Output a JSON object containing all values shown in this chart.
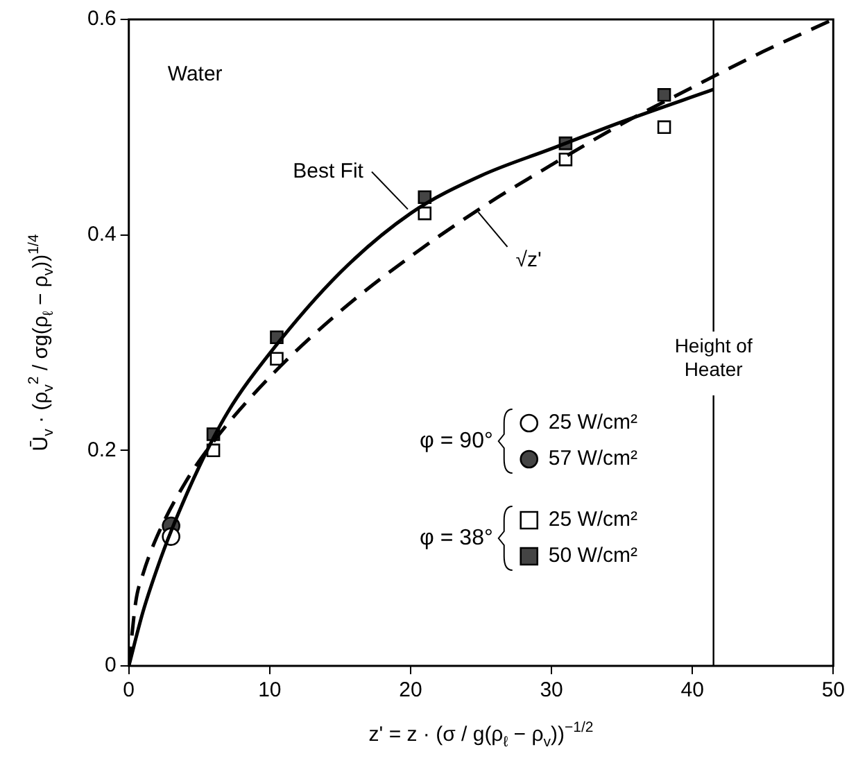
{
  "chart_data": {
    "type": "scatter",
    "xlabel": "z' = z · (σ / g(ρ$_{ℓ}$ − ρ$_{v}$))$^{−1/2}$",
    "ylabel": "Ū$_{v}$ · (ρ$_{v}$$^{2}$ / σg(ρ$_{ℓ}$ − ρ$_{v}$))$^{1/4}$",
    "annotations": [
      "Water",
      "φ = 90°",
      "φ = 38°"
    ],
    "xlim": [
      0,
      50
    ],
    "xticks": [
      0,
      10,
      20,
      30,
      40,
      50
    ],
    "ylim": [
      0,
      0.6
    ],
    "yticks": [
      0,
      0.2,
      0.4,
      0.6
    ],
    "grid": false,
    "legend": "bottom right",
    "ref_lines": [
      {
        "axis": "x",
        "value": 41.5,
        "label": "Height of Heater",
        "color": "#000000"
      }
    ],
    "series": [
      {
        "name": "Best Fit",
        "type": "line",
        "marker": "none",
        "line_style": "solid",
        "color": "#000000",
        "x": [
          0,
          1,
          2,
          3,
          5,
          7,
          10,
          15,
          20,
          25,
          30,
          35,
          41.5
        ],
        "values": [
          0,
          0.05,
          0.09,
          0.125,
          0.185,
          0.235,
          0.29,
          0.365,
          0.42,
          0.455,
          0.48,
          0.505,
          0.535
        ]
      },
      {
        "name": "√z'",
        "type": "line",
        "marker": "none",
        "line_style": "dashed",
        "color": "#000000",
        "x": [
          0,
          0.5,
          1,
          2,
          4,
          6,
          10,
          15,
          20,
          25,
          30,
          35,
          40,
          45,
          50
        ],
        "values": [
          0,
          0.06,
          0.085,
          0.12,
          0.17,
          0.208,
          0.268,
          0.329,
          0.38,
          0.425,
          0.465,
          0.503,
          0.537,
          0.57,
          0.6
        ]
      },
      {
        "name": "25 W/cm²",
        "marker": "circle",
        "color": "#ffffff",
        "x": [
          3
        ],
        "values": [
          0.12
        ]
      },
      {
        "name": "57 W/cm²",
        "marker": "circle",
        "color": "#444444",
        "x": [
          3
        ],
        "values": [
          0.13
        ]
      },
      {
        "name": "25 W/cm²",
        "marker": "square",
        "color": "#ffffff",
        "x": [
          6,
          10.5,
          21,
          31,
          38
        ],
        "values": [
          0.2,
          0.285,
          0.42,
          0.47,
          0.5
        ]
      },
      {
        "name": "50 W/cm²",
        "marker": "square",
        "color": "#444444",
        "x": [
          6,
          10.5,
          21,
          31,
          38
        ],
        "values": [
          0.215,
          0.305,
          0.435,
          0.485,
          0.53
        ]
      }
    ]
  }
}
